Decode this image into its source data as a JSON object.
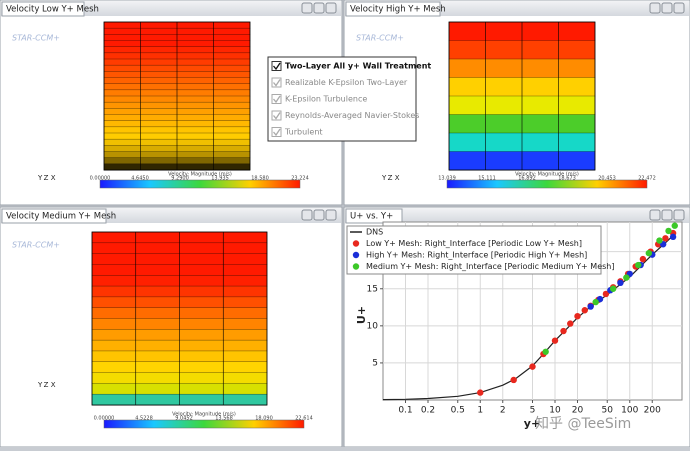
{
  "panels": [
    {
      "title": "Velocity Low Y+ Mesh",
      "columns": 4,
      "rows": [
        "#ff1a00",
        "#ff1a00",
        "#ff1a00",
        "#ff1a00",
        "#ff2600",
        "#ff3000",
        "#ff3c00",
        "#ff4a00",
        "#ff5600",
        "#ff6200",
        "#ff7000",
        "#ff7c00",
        "#ff8800",
        "#ff9400",
        "#ffa000",
        "#ffac00",
        "#ffb800",
        "#ffc400",
        "#ffcc00",
        "#f0c000",
        "#d8ac00",
        "#b89200",
        "#806600",
        "#302600"
      ],
      "colorbar_title": "Velocity: Magnitude (m/s)",
      "colorbar_labels": [
        "0.00000",
        "4.6450",
        "9.2900",
        "13.935",
        "18.580",
        "23.224"
      ]
    },
    {
      "title": "Velocity High Y+ Mesh",
      "columns": 4,
      "rows": [
        "#ff1a00",
        "#ff4000",
        "#ff8c00",
        "#ffd000",
        "#e8ea00",
        "#4ccd2a",
        "#16d8c8",
        "#1a3cff"
      ],
      "colorbar_title": "Velocity: Magnitude (m/s)",
      "colorbar_labels": [
        "13.039",
        "15.111",
        "16.892",
        "18.673",
        "20.453",
        "22.472"
      ]
    },
    {
      "title": "Velocity Medium Y+ Mesh",
      "columns": 4,
      "rows": [
        "#ff1a00",
        "#ff1a00",
        "#ff1a00",
        "#ff1a00",
        "#ff2000",
        "#ff3400",
        "#ff5000",
        "#ff6c00",
        "#ff8400",
        "#ff9c00",
        "#ffb000",
        "#ffc400",
        "#ffd400",
        "#f4dc00",
        "#d8e000",
        "#30c8a0"
      ],
      "colorbar_title": "Velocity: Magnitude (m/s)",
      "colorbar_labels": [
        "0.00000",
        "4.5228",
        "9.0452",
        "13.568",
        "18.090",
        "22.614"
      ]
    }
  ],
  "overlay": {
    "items": [
      "Two-Layer All y+ Wall Treatment",
      "Realizable K-Epsilon Two-Layer",
      "K-Epsilon Turbulence",
      "Reynolds-Averaged Navier-Stokes",
      "Turbulent"
    ]
  },
  "logo": "STAR-CCM+",
  "watermark": "知乎 @TeeSim",
  "chart_data": {
    "type": "line",
    "title": "U+ vs. Y+",
    "x_label": "y+",
    "y_label": "U+",
    "xlog": true,
    "grid": true,
    "xlim": [
      0.05,
      500
    ],
    "ylim": [
      0,
      24
    ],
    "xticks": [
      0.1,
      0.2,
      0.5,
      1,
      2,
      5,
      10,
      20,
      50,
      100,
      200
    ],
    "yticks": [
      5,
      10,
      15,
      20
    ],
    "series": [
      {
        "name": "DNS",
        "color": "#222222",
        "style": "line",
        "x": [
          0.05,
          0.1,
          0.2,
          0.5,
          1,
          2,
          3,
          5,
          7,
          10,
          15,
          20,
          30,
          50,
          100,
          200,
          300,
          400
        ],
        "values": [
          0.05,
          0.1,
          0.2,
          0.5,
          1,
          2,
          2.9,
          4.6,
          6.2,
          8,
          9.8,
          11.1,
          12.6,
          14.2,
          16.6,
          19.6,
          21.2,
          22.4
        ]
      },
      {
        "name": "Low Y+ Mesh: Right_Interface [Periodic Low Y+ Mesh]",
        "color": "#e8281e",
        "style": "points",
        "x": [
          1,
          2.8,
          5,
          7,
          10,
          13,
          16,
          20,
          25,
          30,
          38,
          48,
          60,
          75,
          95,
          120,
          150,
          190,
          240,
          300,
          380
        ],
        "values": [
          1,
          2.7,
          4.5,
          6.2,
          8,
          9.3,
          10.3,
          11.3,
          12.1,
          12.7,
          13.5,
          14.3,
          15.2,
          16,
          17,
          18,
          19,
          20,
          21,
          21.8,
          22.5
        ]
      },
      {
        "name": "High Y+ Mesh: Right_Interface [Periodic High Y+ Mesh]",
        "color": "#1a2ed8",
        "style": "points",
        "x": [
          30,
          40,
          55,
          75,
          100,
          140,
          200,
          280,
          380
        ],
        "values": [
          12.6,
          13.6,
          14.8,
          15.8,
          17,
          18.2,
          19.6,
          21,
          22
        ]
      },
      {
        "name": "Medium Y+ Mesh: Right_Interface [Periodic Medium Y+ Mesh]",
        "color": "#3cc828",
        "style": "points",
        "x": [
          7.5,
          35,
          60,
          90,
          130,
          180,
          250,
          330,
          400
        ],
        "values": [
          6.5,
          13.2,
          15,
          16.5,
          18.2,
          19.8,
          21.5,
          22.8,
          23.5
        ]
      }
    ]
  }
}
